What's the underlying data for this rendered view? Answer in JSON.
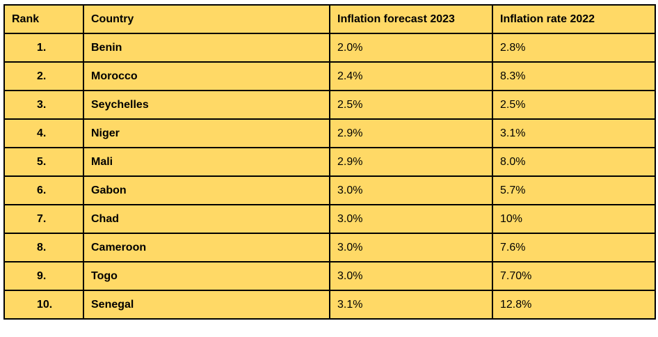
{
  "table": {
    "header": [
      "Rank",
      "Country",
      "Inflation forecast 2023",
      "Inflation rate 2022"
    ],
    "rows": [
      [
        "1.",
        "Benin",
        "2.0%",
        "2.8%"
      ],
      [
        "2.",
        "Morocco",
        "2.4%",
        "8.3%"
      ],
      [
        "3.",
        "Seychelles",
        "2.5%",
        "2.5%"
      ],
      [
        "4.",
        "Niger",
        "2.9%",
        "3.1%"
      ],
      [
        "5.",
        "Mali",
        "2.9%",
        "8.0%"
      ],
      [
        "6.",
        "Gabon",
        "3.0%",
        "5.7%"
      ],
      [
        "7.",
        "Chad",
        "3.0%",
        "10%"
      ],
      [
        "8.",
        "Cameroon",
        "3.0%",
        "7.6%"
      ],
      [
        "9.",
        "Togo",
        "3.0%",
        "7.70%"
      ],
      [
        "10.",
        "Senegal",
        "3.1%",
        "12.8%"
      ]
    ]
  }
}
